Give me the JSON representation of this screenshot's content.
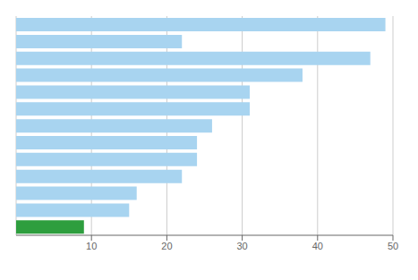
{
  "chart_data": {
    "type": "bar",
    "orientation": "horizontal",
    "categories": [
      null,
      null,
      null,
      null,
      null,
      null,
      null,
      null,
      null,
      null,
      null,
      null,
      null
    ],
    "values": [
      49,
      22,
      47,
      38,
      31,
      31,
      26,
      24,
      24,
      22,
      16,
      15,
      9
    ],
    "colors": [
      "#a8d4f0",
      "#a8d4f0",
      "#a8d4f0",
      "#a8d4f0",
      "#a8d4f0",
      "#a8d4f0",
      "#a8d4f0",
      "#a8d4f0",
      "#a8d4f0",
      "#a8d4f0",
      "#a8d4f0",
      "#a8d4f0",
      "#2e9e3e"
    ],
    "xlim": [
      0,
      50
    ],
    "xticks": [
      10,
      20,
      30,
      40,
      50
    ],
    "grid": true,
    "tick_labels": "x"
  }
}
